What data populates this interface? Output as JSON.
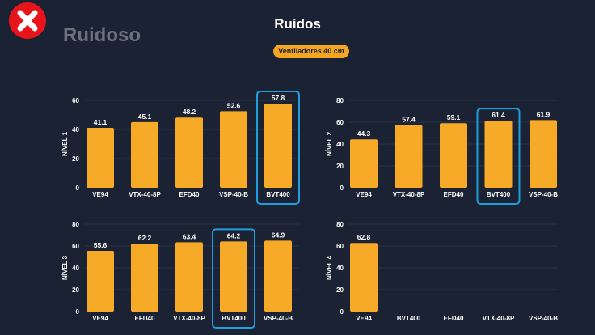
{
  "header": {
    "close_icon": "close-x-icon",
    "brand": "Ruidoso",
    "title": "Ruídos",
    "badge": "Ventiladores 40 cm"
  },
  "colors": {
    "background": "#1b2233",
    "bar": "#f7a928",
    "highlight": "#1e9edb",
    "close": "#e8141c"
  },
  "chart_data": [
    {
      "type": "bar",
      "ylabel": "NÍVEL 1",
      "ylim": [
        0,
        60
      ],
      "yticks": [
        0,
        20,
        40,
        60
      ],
      "grid": true,
      "categories": [
        "VE94",
        "VTX-40-8P",
        "EFD40",
        "VSP-40-B",
        "BVT400"
      ],
      "values": [
        41.1,
        45.1,
        48.2,
        52.6,
        57.8
      ],
      "highlighted": "BVT400"
    },
    {
      "type": "bar",
      "ylabel": "NÍVEL 2",
      "ylim": [
        0,
        80
      ],
      "yticks": [
        0,
        20,
        40,
        60,
        80
      ],
      "grid": true,
      "categories": [
        "VE94",
        "VTX-40-8P",
        "EFD40",
        "BVT400",
        "VSP-40-B"
      ],
      "values": [
        44.3,
        57.4,
        59.1,
        61.4,
        61.9
      ],
      "highlighted": "BVT400"
    },
    {
      "type": "bar",
      "ylabel": "NÍVEL 3",
      "ylim": [
        0,
        80
      ],
      "yticks": [
        0,
        20,
        40,
        60,
        80
      ],
      "grid": true,
      "categories": [
        "VE94",
        "EFD40",
        "VTX-40-8P",
        "BVT400",
        "VSP-40-B"
      ],
      "values": [
        55.6,
        62.2,
        63.4,
        64.2,
        64.9
      ],
      "highlighted": "BVT400"
    },
    {
      "type": "bar",
      "ylabel": "NÍVEL 4",
      "ylim": [
        0,
        80
      ],
      "yticks": [
        0,
        20,
        40,
        60,
        80
      ],
      "grid": true,
      "categories": [
        "VE94",
        "BVT400",
        "EFD40",
        "VTX-40-8P",
        "VSP-40-B"
      ],
      "values": [
        62.8,
        null,
        null,
        null,
        null
      ],
      "highlighted": null
    }
  ]
}
